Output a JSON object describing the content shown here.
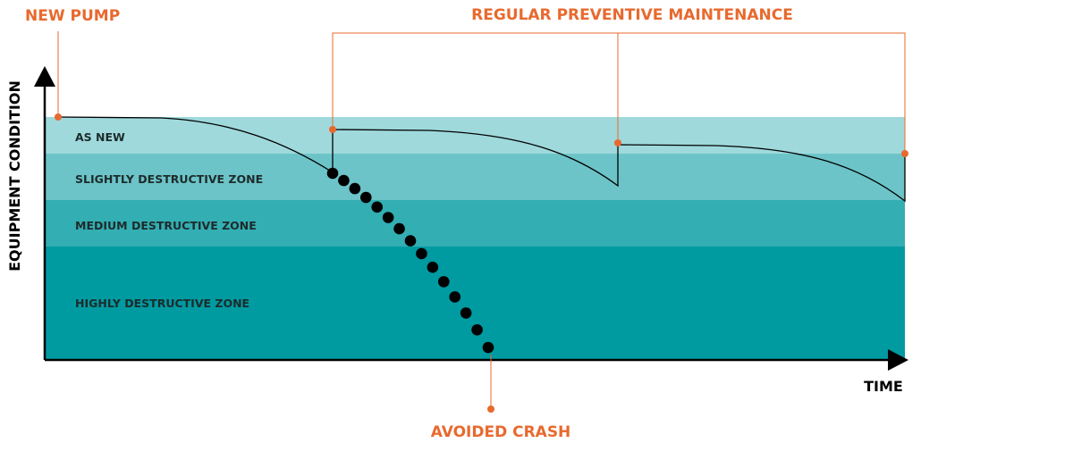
{
  "annotations": {
    "new_pump": "NEW PUMP",
    "maintenance": "REGULAR PREVENTIVE MAINTENANCE",
    "avoided_crash": "AVOIDED CRASH"
  },
  "axes": {
    "y": "EQUIPMENT CONDITION",
    "x": "TIME"
  },
  "zones": [
    "AS NEW",
    "SLIGHTLY DESTRUCTIVE ZONE",
    "MEDIUM DESTRUCTIVE ZONE",
    "HIGHLY DESTRUCTIVE ZONE"
  ]
}
